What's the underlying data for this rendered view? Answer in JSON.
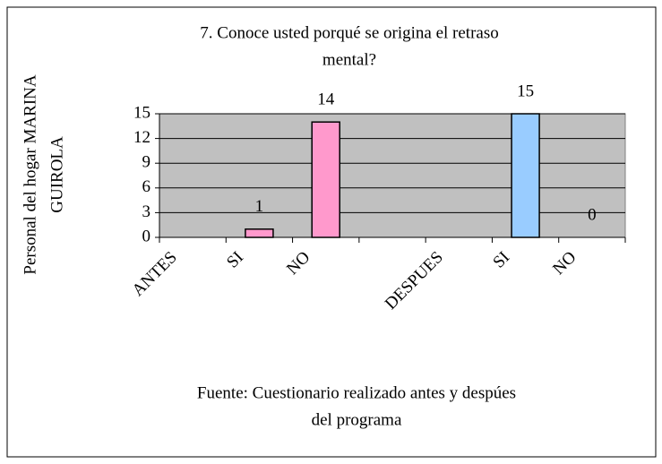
{
  "chart_data": {
    "type": "bar",
    "title": [
      "7. Conoce usted porqué se origina el retraso",
      "mental?"
    ],
    "ylabel": [
      "Personal  del hogar  MARINA",
      "GUIROLA"
    ],
    "note": [
      "Fuente:  Cuestionario realizado antes y despúes",
      "del programa"
    ],
    "categories": [
      "ANTES",
      "SI",
      "NO",
      null,
      "DESPUES",
      "SI",
      "NO"
    ],
    "series": [
      {
        "color": "#ff99cc",
        "values": [
          null,
          1,
          14,
          null,
          null,
          null,
          null
        ]
      },
      {
        "color": "#99ccff",
        "values": [
          null,
          null,
          null,
          null,
          null,
          15,
          0
        ]
      }
    ],
    "ylim": [
      0,
      15
    ],
    "yticks": [
      0,
      3,
      6,
      9,
      12,
      15
    ],
    "grid": true,
    "plot_background": "#c0c0c0"
  }
}
